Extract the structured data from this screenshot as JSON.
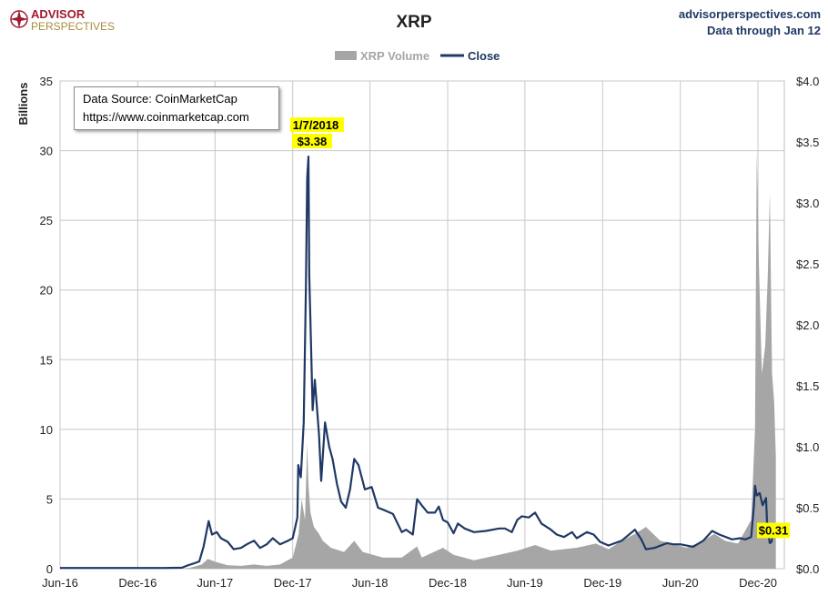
{
  "branding": {
    "logo_line1": "ADVISOR",
    "logo_line2": "PERSPECTIVES",
    "site": "advisorperspectives.com",
    "data_through": "Data through Jan 12",
    "brand_red": "#9e1b32",
    "brand_gold": "#a88b3d"
  },
  "source_box": {
    "line1": "Data Source: CoinMarketCap",
    "line2": "https://www.coinmarketcap.com"
  },
  "chart_data": {
    "type": "area",
    "title": "XRP",
    "left_axis_label": "Billions",
    "legend": [
      "XRP Volume",
      "Close"
    ],
    "legend_position": "top-center",
    "grid": true,
    "x_ticks": [
      "Jun-16",
      "Dec-16",
      "Jun-17",
      "Dec-17",
      "Jun-18",
      "Dec-18",
      "Jun-19",
      "Dec-19",
      "Jun-20",
      "Dec-20"
    ],
    "x_range": [
      "2016-06-01",
      "2021-02-01"
    ],
    "y_left": {
      "min": 0,
      "max": 35,
      "ticks": [
        "0",
        "5",
        "10",
        "15",
        "20",
        "25",
        "30",
        "35"
      ]
    },
    "y_right": {
      "min": 0,
      "max": 4,
      "ticks": [
        "$0.0",
        "$0.5",
        "$1.0",
        "$1.5",
        "$2.0",
        "$2.5",
        "$3.0",
        "$3.5",
        "$4.0"
      ]
    },
    "annotations": {
      "peak_date": "1/7/2018",
      "peak_value": "$3.38",
      "last_value": "$0.31"
    },
    "series": [
      {
        "name": "XRP Volume",
        "axis": "left",
        "unit": "billions",
        "color": "#a6a6a6",
        "points": [
          [
            "2016-06-01",
            0.0
          ],
          [
            "2017-01-01",
            0.01
          ],
          [
            "2017-03-15",
            0.02
          ],
          [
            "2017-04-01",
            0.05
          ],
          [
            "2017-05-01",
            0.3
          ],
          [
            "2017-05-15",
            0.7
          ],
          [
            "2017-06-01",
            0.5
          ],
          [
            "2017-07-01",
            0.25
          ],
          [
            "2017-08-01",
            0.2
          ],
          [
            "2017-09-01",
            0.3
          ],
          [
            "2017-10-01",
            0.2
          ],
          [
            "2017-11-01",
            0.3
          ],
          [
            "2017-12-01",
            0.8
          ],
          [
            "2017-12-15",
            2.5
          ],
          [
            "2017-12-22",
            5.0
          ],
          [
            "2017-12-30",
            3.5
          ],
          [
            "2018-01-04",
            9.0
          ],
          [
            "2018-01-07",
            6.0
          ],
          [
            "2018-01-12",
            4.0
          ],
          [
            "2018-01-20",
            3.0
          ],
          [
            "2018-02-01",
            2.5
          ],
          [
            "2018-02-10",
            2.0
          ],
          [
            "2018-03-01",
            1.5
          ],
          [
            "2018-04-01",
            1.2
          ],
          [
            "2018-04-25",
            2.0
          ],
          [
            "2018-05-15",
            1.2
          ],
          [
            "2018-07-01",
            0.8
          ],
          [
            "2018-08-15",
            0.8
          ],
          [
            "2018-09-20",
            1.6
          ],
          [
            "2018-10-01",
            0.8
          ],
          [
            "2018-11-20",
            1.5
          ],
          [
            "2018-12-15",
            1.0
          ],
          [
            "2019-02-01",
            0.6
          ],
          [
            "2019-04-01",
            1.0
          ],
          [
            "2019-05-15",
            1.3
          ],
          [
            "2019-06-25",
            1.7
          ],
          [
            "2019-08-01",
            1.3
          ],
          [
            "2019-10-01",
            1.5
          ],
          [
            "2019-11-15",
            1.8
          ],
          [
            "2019-12-15",
            1.4
          ],
          [
            "2020-01-15",
            2.0
          ],
          [
            "2020-02-15",
            2.5
          ],
          [
            "2020-03-12",
            3.0
          ],
          [
            "2020-04-15",
            2.0
          ],
          [
            "2020-05-15",
            1.8
          ],
          [
            "2020-06-15",
            1.5
          ],
          [
            "2020-07-25",
            2.0
          ],
          [
            "2020-08-20",
            2.5
          ],
          [
            "2020-09-15",
            2.0
          ],
          [
            "2020-10-15",
            1.8
          ],
          [
            "2020-11-15",
            3.5
          ],
          [
            "2020-11-24",
            10.0
          ],
          [
            "2020-11-28",
            30.0
          ],
          [
            "2020-12-03",
            22.0
          ],
          [
            "2020-12-10",
            14.0
          ],
          [
            "2020-12-18",
            16.0
          ],
          [
            "2020-12-24",
            21.0
          ],
          [
            "2020-12-29",
            27.0
          ],
          [
            "2021-01-03",
            14.0
          ],
          [
            "2021-01-08",
            12.0
          ],
          [
            "2021-01-12",
            8.0
          ]
        ]
      },
      {
        "name": "Close",
        "axis": "right",
        "unit": "USD",
        "color": "#1f3864",
        "points": [
          [
            "2016-06-01",
            0.006
          ],
          [
            "2016-09-01",
            0.006
          ],
          [
            "2016-12-01",
            0.006
          ],
          [
            "2017-02-01",
            0.006
          ],
          [
            "2017-03-15",
            0.008
          ],
          [
            "2017-03-31",
            0.03
          ],
          [
            "2017-04-10",
            0.04
          ],
          [
            "2017-04-25",
            0.06
          ],
          [
            "2017-05-05",
            0.18
          ],
          [
            "2017-05-17",
            0.39
          ],
          [
            "2017-05-25",
            0.28
          ],
          [
            "2017-06-05",
            0.3
          ],
          [
            "2017-06-15",
            0.25
          ],
          [
            "2017-07-01",
            0.22
          ],
          [
            "2017-07-15",
            0.16
          ],
          [
            "2017-08-01",
            0.17
          ],
          [
            "2017-08-15",
            0.2
          ],
          [
            "2017-09-01",
            0.23
          ],
          [
            "2017-09-15",
            0.17
          ],
          [
            "2017-10-01",
            0.2
          ],
          [
            "2017-10-15",
            0.25
          ],
          [
            "2017-11-01",
            0.2
          ],
          [
            "2017-11-20",
            0.23
          ],
          [
            "2017-12-01",
            0.25
          ],
          [
            "2017-12-12",
            0.42
          ],
          [
            "2017-12-14",
            0.85
          ],
          [
            "2017-12-20",
            0.75
          ],
          [
            "2017-12-27",
            1.2
          ],
          [
            "2018-01-01",
            2.3
          ],
          [
            "2018-01-04",
            3.2
          ],
          [
            "2018-01-07",
            3.38
          ],
          [
            "2018-01-09",
            2.4
          ],
          [
            "2018-01-13",
            1.85
          ],
          [
            "2018-01-17",
            1.3
          ],
          [
            "2018-01-22",
            1.55
          ],
          [
            "2018-02-01",
            1.1
          ],
          [
            "2018-02-06",
            0.72
          ],
          [
            "2018-02-15",
            1.2
          ],
          [
            "2018-02-25",
            1.0
          ],
          [
            "2018-03-05",
            0.9
          ],
          [
            "2018-03-15",
            0.7
          ],
          [
            "2018-03-25",
            0.55
          ],
          [
            "2018-04-05",
            0.5
          ],
          [
            "2018-04-15",
            0.65
          ],
          [
            "2018-04-25",
            0.9
          ],
          [
            "2018-05-05",
            0.85
          ],
          [
            "2018-05-20",
            0.65
          ],
          [
            "2018-06-05",
            0.67
          ],
          [
            "2018-06-20",
            0.5
          ],
          [
            "2018-07-05",
            0.48
          ],
          [
            "2018-07-25",
            0.45
          ],
          [
            "2018-08-15",
            0.3
          ],
          [
            "2018-08-25",
            0.32
          ],
          [
            "2018-09-10",
            0.28
          ],
          [
            "2018-09-20",
            0.57
          ],
          [
            "2018-10-01",
            0.52
          ],
          [
            "2018-10-15",
            0.46
          ],
          [
            "2018-11-01",
            0.46
          ],
          [
            "2018-11-10",
            0.51
          ],
          [
            "2018-11-20",
            0.4
          ],
          [
            "2018-12-01",
            0.38
          ],
          [
            "2018-12-15",
            0.29
          ],
          [
            "2018-12-25",
            0.37
          ],
          [
            "2019-01-10",
            0.33
          ],
          [
            "2019-02-01",
            0.3
          ],
          [
            "2019-03-01",
            0.31
          ],
          [
            "2019-04-01",
            0.33
          ],
          [
            "2019-04-15",
            0.33
          ],
          [
            "2019-05-01",
            0.3
          ],
          [
            "2019-05-14",
            0.4
          ],
          [
            "2019-05-25",
            0.43
          ],
          [
            "2019-06-10",
            0.42
          ],
          [
            "2019-06-25",
            0.46
          ],
          [
            "2019-07-10",
            0.37
          ],
          [
            "2019-08-01",
            0.32
          ],
          [
            "2019-08-15",
            0.28
          ],
          [
            "2019-09-01",
            0.26
          ],
          [
            "2019-09-20",
            0.3
          ],
          [
            "2019-10-01",
            0.25
          ],
          [
            "2019-10-25",
            0.3
          ],
          [
            "2019-11-10",
            0.28
          ],
          [
            "2019-11-25",
            0.22
          ],
          [
            "2019-12-15",
            0.19
          ],
          [
            "2020-01-15",
            0.23
          ],
          [
            "2020-02-15",
            0.32
          ],
          [
            "2020-03-01",
            0.24
          ],
          [
            "2020-03-12",
            0.16
          ],
          [
            "2020-04-01",
            0.17
          ],
          [
            "2020-05-01",
            0.21
          ],
          [
            "2020-05-15",
            0.2
          ],
          [
            "2020-06-01",
            0.2
          ],
          [
            "2020-07-01",
            0.18
          ],
          [
            "2020-07-25",
            0.23
          ],
          [
            "2020-08-15",
            0.31
          ],
          [
            "2020-09-01",
            0.28
          ],
          [
            "2020-10-01",
            0.24
          ],
          [
            "2020-10-20",
            0.25
          ],
          [
            "2020-11-01",
            0.24
          ],
          [
            "2020-11-15",
            0.26
          ],
          [
            "2020-11-21",
            0.5
          ],
          [
            "2020-11-24",
            0.68
          ],
          [
            "2020-11-28",
            0.6
          ],
          [
            "2020-12-05",
            0.62
          ],
          [
            "2020-12-12",
            0.52
          ],
          [
            "2020-12-20",
            0.58
          ],
          [
            "2020-12-23",
            0.32
          ],
          [
            "2020-12-29",
            0.21
          ],
          [
            "2021-01-02",
            0.22
          ],
          [
            "2021-01-06",
            0.33
          ],
          [
            "2021-01-09",
            0.31
          ],
          [
            "2021-01-12",
            0.31
          ]
        ]
      }
    ]
  }
}
